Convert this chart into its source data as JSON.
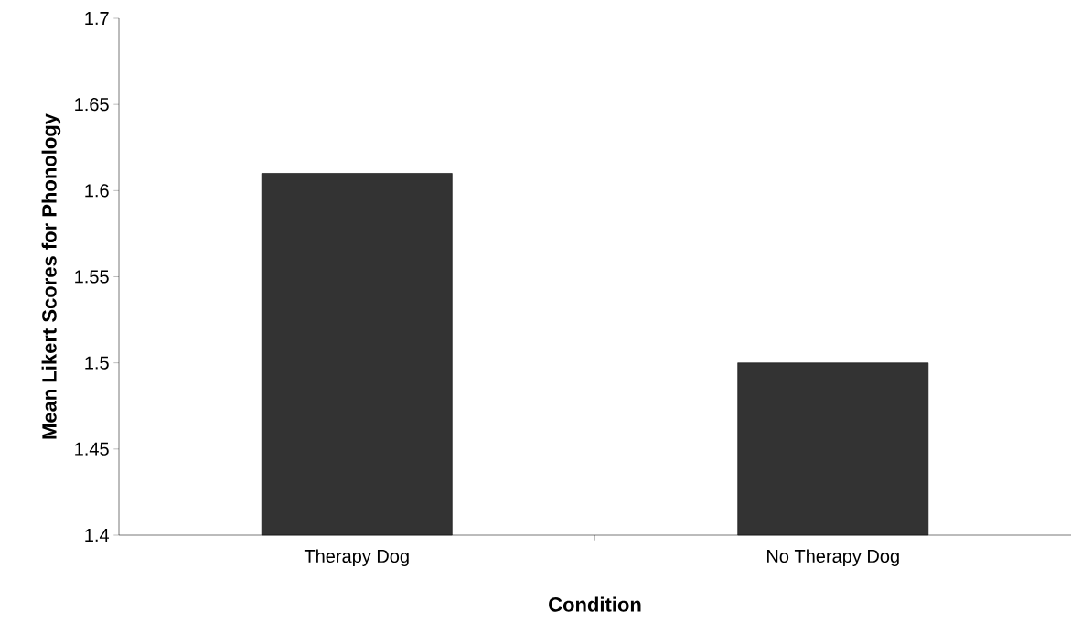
{
  "chart_data": {
    "type": "bar",
    "xlabel": "Condition",
    "ylabel": "Mean Likert Scores for Phonology",
    "categories": [
      "Therapy Dog",
      "No Therapy Dog"
    ],
    "values": [
      1.61,
      1.5
    ],
    "color": "#333333",
    "ylim": [
      1.4,
      1.7
    ],
    "yticks": [
      1.4,
      1.45,
      1.5,
      1.55,
      1.6,
      1.65,
      1.7
    ],
    "grid": false
  }
}
